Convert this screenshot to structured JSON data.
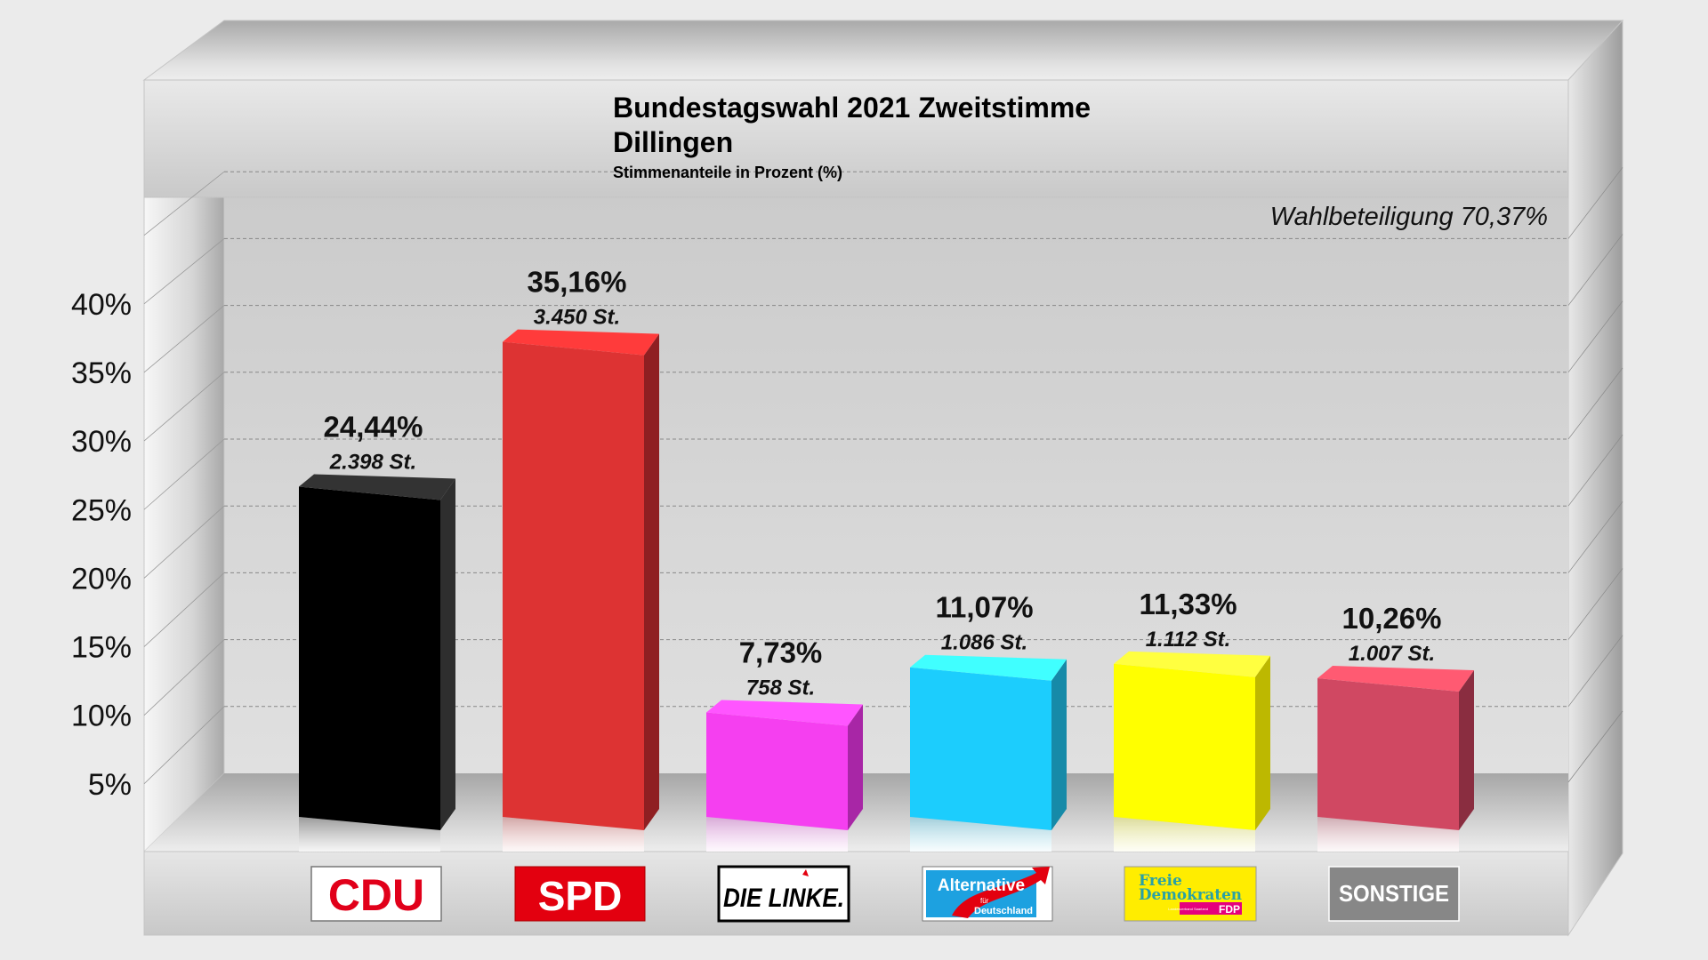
{
  "chart_data": {
    "type": "bar",
    "title": "Bundestagswahl 2021 Zweitstimme",
    "subtitle_location": "Dillingen",
    "subtitle": "Stimmenanteile in Prozent (%)",
    "annotation": "Wahlbeteiligung 70,37%",
    "turnout_percent": 70.37,
    "xlabel": "",
    "ylabel": "",
    "ylim": [
      0,
      45
    ],
    "grid": true,
    "y_ticks": [
      "5%",
      "10%",
      "15%",
      "20%",
      "25%",
      "30%",
      "35%",
      "40%"
    ],
    "y_tick_values": [
      5,
      10,
      15,
      20,
      25,
      30,
      35,
      40
    ],
    "categories": [
      "CDU",
      "SPD",
      "DIE LINKE",
      "AfD",
      "FDP",
      "SONSTIGE"
    ],
    "values": [
      24.44,
      35.16,
      7.73,
      11.07,
      11.33,
      10.26
    ],
    "value_labels": [
      "24,44%",
      "35,16%",
      "7,73%",
      "11,07%",
      "11,33%",
      "10,26%"
    ],
    "votes": [
      2398,
      3450,
      758,
      1086,
      1112,
      1007
    ],
    "vote_labels": [
      "2.398 St.",
      "3.450 St.",
      "758 St.",
      "1.086 St.",
      "1.112 St.",
      "1.007 St."
    ],
    "colors": {
      "front": [
        "#000000",
        "#dd3333",
        "#f53ff0",
        "#1ccdfd",
        "#ffff00",
        "#d04862"
      ],
      "side": [
        "#2e2e2e",
        "#8f1f22",
        "#a826a6",
        "#168aa8",
        "#bdb800",
        "#8a2d40"
      ],
      "top": [
        "#333333",
        "#ff3b3b",
        "#ff55ff",
        "#40ffff",
        "#ffff40",
        "#ff5a72"
      ]
    }
  },
  "logos": {
    "cdu": {
      "text": "CDU"
    },
    "spd": {
      "text": "SPD"
    },
    "linke": {
      "text": "DIE LINKE."
    },
    "afd": {
      "line1": "Alternative",
      "line2": "für",
      "line3": "Deutschland"
    },
    "fdp": {
      "line1": "Freie",
      "line2": "Demokraten",
      "small": "Landesverband Saarland",
      "abbr": "FDP"
    },
    "sonstige": {
      "text": "SONSTIGE"
    }
  }
}
